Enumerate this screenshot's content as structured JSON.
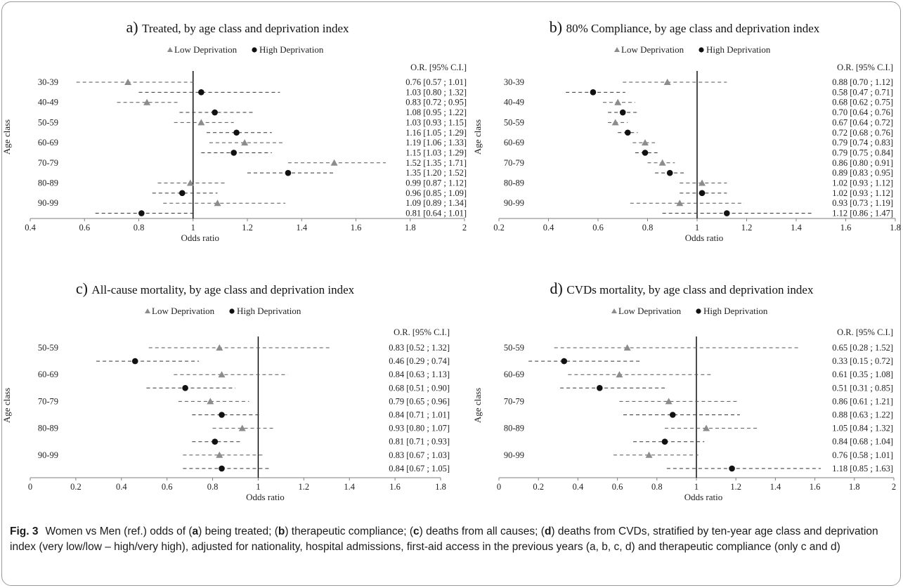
{
  "colors": {
    "low": "#8c8c8c",
    "high": "#111111",
    "axis": "#7f7f7f",
    "refline": "#000000"
  },
  "panels": [
    {
      "label": "a)",
      "title": "Treated, by age class and deprivation index",
      "legend": {
        "low": "Low Deprivation",
        "high": "High Deprivation"
      },
      "table_header": "O.R. [95% C.I.]"
    },
    {
      "label": "b)",
      "title": "80% Compliance, by age class and deprivation index",
      "legend": {
        "low": "Low Deprivation",
        "high": "High Deprivation"
      },
      "table_header": "O.R. [95% C.I.]"
    },
    {
      "label": "c)",
      "title": "All-cause mortality, by age class and deprivation index",
      "legend": {
        "low": "Low Deprivation",
        "high": "High Deprivation"
      },
      "table_header": "O.R. [95% C.I.]"
    },
    {
      "label": "d)",
      "title": "CVDs mortality, by age class and deprivation index",
      "legend": {
        "low": "Low Deprivation",
        "high": "High Deprivation"
      },
      "table_header": "O.R. [95% C.I.]"
    }
  ],
  "chart_data": [
    {
      "type": "forest",
      "title": "Treated, by age class and deprivation index",
      "xlabel": "Odds ratio",
      "ylabel": "Age class",
      "xlim": [
        0.4,
        2
      ],
      "xticks": [
        0.4,
        0.6,
        0.8,
        1,
        1.2,
        1.4,
        1.6,
        1.8,
        2
      ],
      "xtick_labels": [
        "0.4",
        "0.6",
        "0.8",
        "1",
        "1.2",
        "1.4",
        "1.6",
        "1.8",
        "2"
      ],
      "reference_line": 1,
      "series": [
        "Low Deprivation",
        "High Deprivation"
      ],
      "categories": [
        "30-39",
        "40-49",
        "50-59",
        "60-69",
        "70-79",
        "80-89",
        "90-99"
      ],
      "rows": [
        {
          "category": "30-39",
          "series": "Low Deprivation",
          "or": 0.76,
          "lo": 0.57,
          "hi": 1.01,
          "label": "0.76 [0.57 ; 1.01]"
        },
        {
          "category": "30-39",
          "series": "High Deprivation",
          "or": 1.03,
          "lo": 0.8,
          "hi": 1.32,
          "label": "1.03 [0.80 ; 1.32]"
        },
        {
          "category": "40-49",
          "series": "Low Deprivation",
          "or": 0.83,
          "lo": 0.72,
          "hi": 0.95,
          "label": "0.83 [0.72 ; 0.95]"
        },
        {
          "category": "40-49",
          "series": "High Deprivation",
          "or": 1.08,
          "lo": 0.95,
          "hi": 1.22,
          "label": "1.08 [0.95 ; 1.22]"
        },
        {
          "category": "50-59",
          "series": "Low Deprivation",
          "or": 1.03,
          "lo": 0.93,
          "hi": 1.15,
          "label": "1.03 [0.93 ; 1.15]"
        },
        {
          "category": "50-59",
          "series": "High Deprivation",
          "or": 1.16,
          "lo": 1.05,
          "hi": 1.29,
          "label": "1.16 [1.05 ; 1.29]"
        },
        {
          "category": "60-69",
          "series": "Low Deprivation",
          "or": 1.19,
          "lo": 1.06,
          "hi": 1.33,
          "label": "1.19 [1.06 ; 1.33]"
        },
        {
          "category": "60-69",
          "series": "High Deprivation",
          "or": 1.15,
          "lo": 1.03,
          "hi": 1.29,
          "label": "1.15 [1.03 ; 1.29]"
        },
        {
          "category": "70-79",
          "series": "Low Deprivation",
          "or": 1.52,
          "lo": 1.35,
          "hi": 1.71,
          "label": "1.52 [1.35 ; 1.71]"
        },
        {
          "category": "70-79",
          "series": "High Deprivation",
          "or": 1.35,
          "lo": 1.2,
          "hi": 1.52,
          "label": "1.35 [1.20 ; 1.52]"
        },
        {
          "category": "80-89",
          "series": "Low Deprivation",
          "or": 0.99,
          "lo": 0.87,
          "hi": 1.12,
          "label": "0.99 [0.87 ; 1.12]"
        },
        {
          "category": "80-89",
          "series": "High Deprivation",
          "or": 0.96,
          "lo": 0.85,
          "hi": 1.09,
          "label": "0.96 [0.85 ; 1.09]"
        },
        {
          "category": "90-99",
          "series": "Low Deprivation",
          "or": 1.09,
          "lo": 0.89,
          "hi": 1.34,
          "label": "1.09 [0.89 ; 1.34]"
        },
        {
          "category": "90-99",
          "series": "High Deprivation",
          "or": 0.81,
          "lo": 0.64,
          "hi": 1.01,
          "label": "0.81 [0.64 ; 1.01]"
        }
      ]
    },
    {
      "type": "forest",
      "title": "80% Compliance, by age class and deprivation index",
      "xlabel": "Odds ratio",
      "ylabel": "Age class",
      "xlim": [
        0.2,
        1.8
      ],
      "xticks": [
        0.2,
        0.4,
        0.6,
        0.8,
        1,
        1.2,
        1.4,
        1.6,
        1.8
      ],
      "xtick_labels": [
        "0.2",
        "0.4",
        "0.6",
        "0.8",
        "1",
        "1.2",
        "1.4",
        "1.6",
        "1.8"
      ],
      "reference_line": 1,
      "series": [
        "Low Deprivation",
        "High Deprivation"
      ],
      "categories": [
        "30-39",
        "40-49",
        "50-59",
        "60-69",
        "70-79",
        "80-89",
        "90-99"
      ],
      "rows": [
        {
          "category": "30-39",
          "series": "Low Deprivation",
          "or": 0.88,
          "lo": 0.7,
          "hi": 1.12,
          "label": "0.88 [0.70 ; 1.12]"
        },
        {
          "category": "30-39",
          "series": "High Deprivation",
          "or": 0.58,
          "lo": 0.47,
          "hi": 0.71,
          "label": "0.58 [0.47 ; 0.71]"
        },
        {
          "category": "40-49",
          "series": "Low Deprivation",
          "or": 0.68,
          "lo": 0.62,
          "hi": 0.75,
          "label": "0.68 [0.62 ; 0.75]"
        },
        {
          "category": "40-49",
          "series": "High Deprivation",
          "or": 0.7,
          "lo": 0.64,
          "hi": 0.76,
          "label": "0.70 [0.64 ; 0.76]"
        },
        {
          "category": "50-59",
          "series": "Low Deprivation",
          "or": 0.67,
          "lo": 0.64,
          "hi": 0.72,
          "label": "0.67 [0.64 ; 0.72]"
        },
        {
          "category": "50-59",
          "series": "High Deprivation",
          "or": 0.72,
          "lo": 0.68,
          "hi": 0.76,
          "label": "0.72 [0.68 ; 0.76]"
        },
        {
          "category": "60-69",
          "series": "Low Deprivation",
          "or": 0.79,
          "lo": 0.74,
          "hi": 0.83,
          "label": "0.79 [0.74 ; 0.83]"
        },
        {
          "category": "60-69",
          "series": "High Deprivation",
          "or": 0.79,
          "lo": 0.75,
          "hi": 0.84,
          "label": "0.79 [0.75 ; 0.84]"
        },
        {
          "category": "70-79",
          "series": "Low Deprivation",
          "or": 0.86,
          "lo": 0.8,
          "hi": 0.91,
          "label": "0.86 [0.80 ; 0.91]"
        },
        {
          "category": "70-79",
          "series": "High Deprivation",
          "or": 0.89,
          "lo": 0.83,
          "hi": 0.95,
          "label": "0.89 [0.83 ; 0.95]"
        },
        {
          "category": "80-89",
          "series": "Low Deprivation",
          "or": 1.02,
          "lo": 0.93,
          "hi": 1.12,
          "label": "1.02 [0.93 ; 1.12]"
        },
        {
          "category": "80-89",
          "series": "High Deprivation",
          "or": 1.02,
          "lo": 0.93,
          "hi": 1.12,
          "label": "1.02 [0.93 ; 1.12]"
        },
        {
          "category": "90-99",
          "series": "Low Deprivation",
          "or": 0.93,
          "lo": 0.73,
          "hi": 1.19,
          "label": "0.93 [0.73 ; 1.19]"
        },
        {
          "category": "90-99",
          "series": "High Deprivation",
          "or": 1.12,
          "lo": 0.86,
          "hi": 1.47,
          "label": "1.12 [0.86 ; 1.47]"
        }
      ]
    },
    {
      "type": "forest",
      "title": "All-cause mortality, by age class and deprivation index",
      "xlabel": "Odds ratio",
      "ylabel": "Age class",
      "xlim": [
        0,
        1.8
      ],
      "xticks": [
        0,
        0.2,
        0.4,
        0.6,
        0.8,
        1,
        1.2,
        1.4,
        1.6,
        1.8
      ],
      "xtick_labels": [
        "0",
        "0.2",
        "0.4",
        "0.6",
        "0.8",
        "1",
        "1.2",
        "1.4",
        "1.6",
        "1.8"
      ],
      "reference_line": 1,
      "series": [
        "Low Deprivation",
        "High Deprivation"
      ],
      "categories": [
        "50-59",
        "60-69",
        "70-79",
        "80-89",
        "90-99"
      ],
      "rows": [
        {
          "category": "50-59",
          "series": "Low Deprivation",
          "or": 0.83,
          "lo": 0.52,
          "hi": 1.32,
          "label": "0.83 [0.52 ; 1.32]"
        },
        {
          "category": "50-59",
          "series": "High Deprivation",
          "or": 0.46,
          "lo": 0.29,
          "hi": 0.74,
          "label": "0.46 [0.29 ; 0.74]"
        },
        {
          "category": "60-69",
          "series": "Low Deprivation",
          "or": 0.84,
          "lo": 0.63,
          "hi": 1.13,
          "label": "0.84 [0.63 ; 1.13]"
        },
        {
          "category": "60-69",
          "series": "High Deprivation",
          "or": 0.68,
          "lo": 0.51,
          "hi": 0.9,
          "label": "0.68 [0.51 ; 0.90]"
        },
        {
          "category": "70-79",
          "series": "Low Deprivation",
          "or": 0.79,
          "lo": 0.65,
          "hi": 0.96,
          "label": "0.79 [0.65 ; 0.96]"
        },
        {
          "category": "70-79",
          "series": "High Deprivation",
          "or": 0.84,
          "lo": 0.71,
          "hi": 1.01,
          "label": "0.84 [0.71 ; 1.01]"
        },
        {
          "category": "80-89",
          "series": "Low Deprivation",
          "or": 0.93,
          "lo": 0.8,
          "hi": 1.07,
          "label": "0.93 [0.80 ; 1.07]"
        },
        {
          "category": "80-89",
          "series": "High Deprivation",
          "or": 0.81,
          "lo": 0.71,
          "hi": 0.93,
          "label": "0.81 [0.71 ; 0.93]"
        },
        {
          "category": "90-99",
          "series": "Low Deprivation",
          "or": 0.83,
          "lo": 0.67,
          "hi": 1.03,
          "label": "0.83 [0.67 ; 1.03]"
        },
        {
          "category": "90-99",
          "series": "High Deprivation",
          "or": 0.84,
          "lo": 0.67,
          "hi": 1.05,
          "label": "0.84 [0.67 ; 1.05]"
        }
      ]
    },
    {
      "type": "forest",
      "title": "CVDs mortality, by age class and deprivation index",
      "xlabel": "Odds ratio",
      "ylabel": "Age class",
      "xlim": [
        0,
        2
      ],
      "xticks": [
        0,
        0.2,
        0.4,
        0.6,
        0.8,
        1,
        1.2,
        1.4,
        1.6,
        1.8,
        2
      ],
      "xtick_labels": [
        "0",
        "0.2",
        "0.4",
        "0.6",
        "0.8",
        "1",
        "1.2",
        "1.4",
        "1.6",
        "1.8",
        "2"
      ],
      "reference_line": 1,
      "series": [
        "Low Deprivation",
        "High Deprivation"
      ],
      "categories": [
        "50-59",
        "60-69",
        "70-79",
        "80-89",
        "90-99"
      ],
      "rows": [
        {
          "category": "50-59",
          "series": "Low Deprivation",
          "or": 0.65,
          "lo": 0.28,
          "hi": 1.52,
          "label": "0.65 [0.28 ; 1.52]"
        },
        {
          "category": "50-59",
          "series": "High Deprivation",
          "or": 0.33,
          "lo": 0.15,
          "hi": 0.72,
          "label": "0.33 [0.15 ; 0.72]"
        },
        {
          "category": "60-69",
          "series": "Low Deprivation",
          "or": 0.61,
          "lo": 0.35,
          "hi": 1.08,
          "label": "0.61 [0.35 ; 1.08]"
        },
        {
          "category": "60-69",
          "series": "High Deprivation",
          "or": 0.51,
          "lo": 0.31,
          "hi": 0.85,
          "label": "0.51 [0.31 ; 0.85]"
        },
        {
          "category": "70-79",
          "series": "Low Deprivation",
          "or": 0.86,
          "lo": 0.61,
          "hi": 1.21,
          "label": "0.86 [0.61 ; 1.21]"
        },
        {
          "category": "70-79",
          "series": "High Deprivation",
          "or": 0.88,
          "lo": 0.63,
          "hi": 1.22,
          "label": "0.88 [0.63 ; 1.22]"
        },
        {
          "category": "80-89",
          "series": "Low Deprivation",
          "or": 1.05,
          "lo": 0.84,
          "hi": 1.32,
          "label": "1.05 [0.84 ; 1.32]"
        },
        {
          "category": "80-89",
          "series": "High Deprivation",
          "or": 0.84,
          "lo": 0.68,
          "hi": 1.04,
          "label": "0.84 [0.68 ; 1.04]"
        },
        {
          "category": "90-99",
          "series": "Low Deprivation",
          "or": 0.76,
          "lo": 0.58,
          "hi": 1.01,
          "label": "0.76 [0.58 ; 1.01]"
        },
        {
          "category": "90-99",
          "series": "High Deprivation",
          "or": 1.18,
          "lo": 0.85,
          "hi": 1.63,
          "label": "1.18 [0.85 ; 1.63]"
        }
      ]
    }
  ],
  "caption": {
    "fig_label": "Fig. 3",
    "parts": [
      {
        "t": "Women vs Men (ref.) odds of (",
        "b": false
      },
      {
        "t": "a",
        "b": true
      },
      {
        "t": ") being treated; (",
        "b": false
      },
      {
        "t": "b",
        "b": true
      },
      {
        "t": ") therapeutic compliance; (",
        "b": false
      },
      {
        "t": "c",
        "b": true
      },
      {
        "t": ") deaths from all causes; (",
        "b": false
      },
      {
        "t": "d",
        "b": true
      },
      {
        "t": ") deaths from CVDs, stratified by ten-year age class and deprivation index (very low/low – high/very high), adjusted for nationality, hospital admissions, first-aid access in the previous years (a, b, c, d) and therapeutic compliance (only c and d)",
        "b": false
      }
    ]
  }
}
